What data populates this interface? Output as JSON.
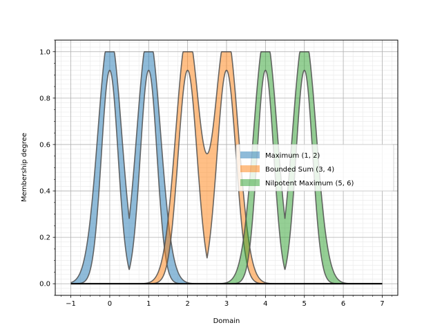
{
  "chart_data": {
    "type": "area",
    "title": "",
    "xlabel": "Domain",
    "ylabel": "Membership degree",
    "xlim": [
      -1.4,
      7.4
    ],
    "ylim": [
      -0.05,
      1.05
    ],
    "x_ticks": [
      -1,
      0,
      1,
      2,
      3,
      4,
      5,
      6,
      7
    ],
    "x_tick_labels": [
      "−1",
      "0",
      "1",
      "2",
      "3",
      "4",
      "5",
      "6",
      "7"
    ],
    "y_ticks": [
      0.0,
      0.2,
      0.4,
      0.6,
      0.8,
      1.0
    ],
    "y_tick_labels": [
      "0.0",
      "0.2",
      "0.4",
      "0.6",
      "0.8",
      "1.0"
    ],
    "grid": "major and minor",
    "legend_position": "center-right",
    "x_domain": [
      -1,
      7
    ],
    "series": [
      {
        "name": "Maximum (1, 2)",
        "color": "#1f77b4",
        "upper_centers": [
          0,
          1
        ],
        "lower_centers": [
          0,
          1
        ],
        "upper_combine": "max",
        "lower_combine": "max",
        "upper_peak_at_centers": 1.0,
        "lower_peak_at_centers": 0.92,
        "upper_min_between": 0.28,
        "lower_min_between": 0.06
      },
      {
        "name": "Bounded Sum (3, 4)",
        "color": "#ff7f0e",
        "upper_centers": [
          2,
          3
        ],
        "lower_centers": [
          2,
          3
        ],
        "upper_combine": "bounded_sum",
        "lower_combine": "max",
        "upper_peak_at_centers": 1.0,
        "lower_peak_at_centers": 0.92,
        "upper_min_between": 0.56,
        "lower_min_between": 0.11
      },
      {
        "name": "Nilpotent Maximum (5, 6)",
        "color": "#2ca02c",
        "upper_centers": [
          4,
          5
        ],
        "lower_centers": [
          4,
          5
        ],
        "upper_combine": "max",
        "lower_combine": "max",
        "upper_peak_at_centers": 1.0,
        "lower_peak_at_centers": 0.92,
        "upper_min_between": 0.28,
        "lower_min_between": 0.06
      }
    ]
  }
}
